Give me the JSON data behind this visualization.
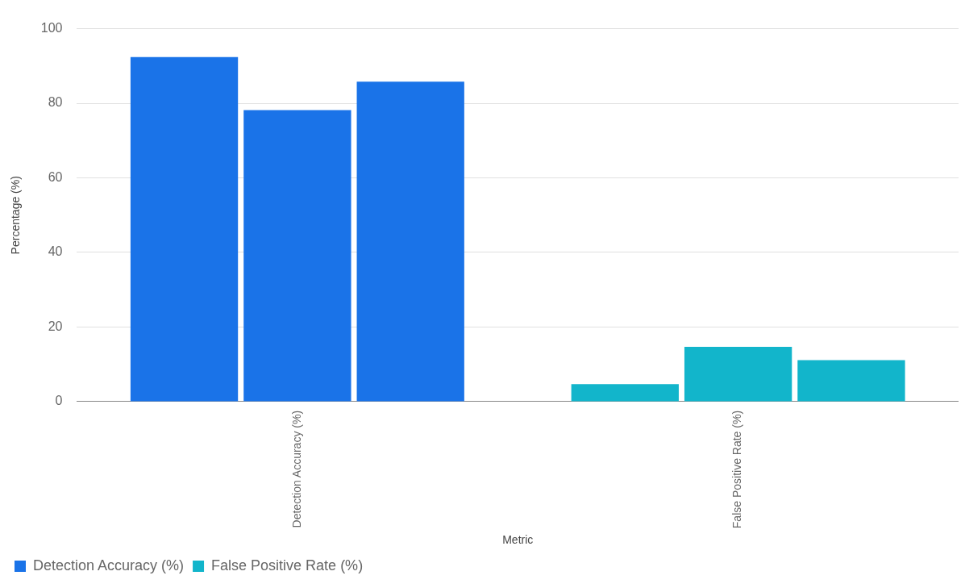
{
  "chart_data": {
    "type": "bar",
    "categories": [
      "Detection Accuracy (%)",
      "False Positive Rate (%)"
    ],
    "series": [
      {
        "name": "Detection Accuracy (%)",
        "color": "#1a73e8",
        "values": [
          92.4,
          null
        ]
      },
      {
        "color": "#1a73e8",
        "values": [
          78.2,
          null
        ]
      },
      {
        "color": "#1a73e8",
        "values": [
          85.8,
          null
        ]
      },
      {
        "name": "False Positive Rate (%)",
        "color": "#12b5cb",
        "values": [
          null,
          4.7
        ]
      },
      {
        "color": "#12b5cb",
        "values": [
          null,
          14.7
        ]
      },
      {
        "color": "#12b5cb",
        "values": [
          null,
          11.1
        ]
      }
    ],
    "xlabel": "Metric",
    "ylabel": "Percentage (%)",
    "ylim": [
      0,
      100
    ],
    "yticks": [
      0,
      20,
      40,
      60,
      80,
      100
    ],
    "grid": "y",
    "legend": "bottom"
  }
}
